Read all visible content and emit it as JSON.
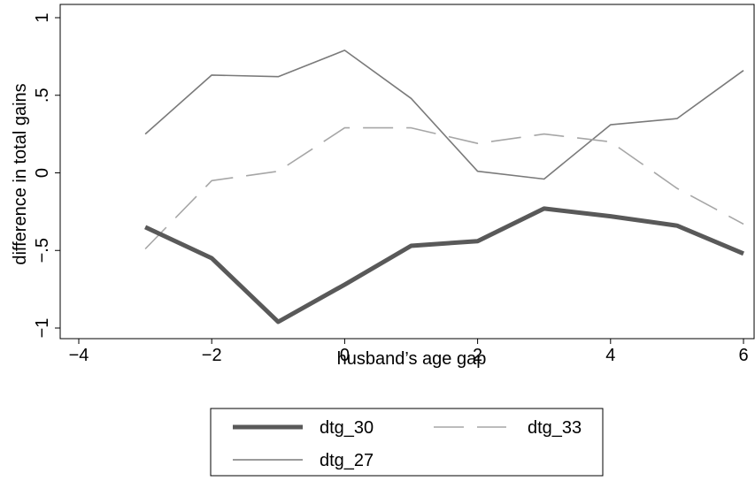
{
  "chart_data": {
    "type": "line",
    "title": "",
    "xlabel": "husband’s age gap",
    "ylabel": "difference in total gains",
    "xlim": [
      -4,
      6
    ],
    "ylim": [
      -1,
      1
    ],
    "xticks": [
      -4,
      -2,
      0,
      2,
      4,
      6
    ],
    "yticks": [
      -1,
      -0.5,
      0,
      0.5,
      1
    ],
    "xtick_labels": [
      "−4",
      "−2",
      "0",
      "2",
      "4",
      "6"
    ],
    "ytick_labels": [
      "−1",
      "−.5",
      "0",
      ".5",
      "1"
    ],
    "grid": false,
    "legend_position": "bottom",
    "x": [
      -3,
      -2,
      -1,
      0,
      1,
      2,
      3,
      4,
      5,
      6
    ],
    "series": [
      {
        "name": "dtg_30",
        "style": "solid-thick",
        "color": "#595959",
        "values": [
          -0.35,
          -0.55,
          -0.96,
          -0.72,
          -0.47,
          -0.44,
          -0.23,
          -0.28,
          -0.34,
          -0.52
        ]
      },
      {
        "name": "dtg_33",
        "style": "dashed",
        "color": "#a6a6a6",
        "values": [
          -0.49,
          -0.05,
          0.01,
          0.29,
          0.29,
          0.19,
          0.25,
          0.2,
          -0.1,
          -0.33
        ]
      },
      {
        "name": "dtg_27",
        "style": "solid-thin",
        "color": "#7a7a7a",
        "values": [
          0.25,
          0.63,
          0.62,
          0.79,
          0.48,
          0.01,
          -0.04,
          0.31,
          0.35,
          0.66
        ]
      }
    ]
  }
}
